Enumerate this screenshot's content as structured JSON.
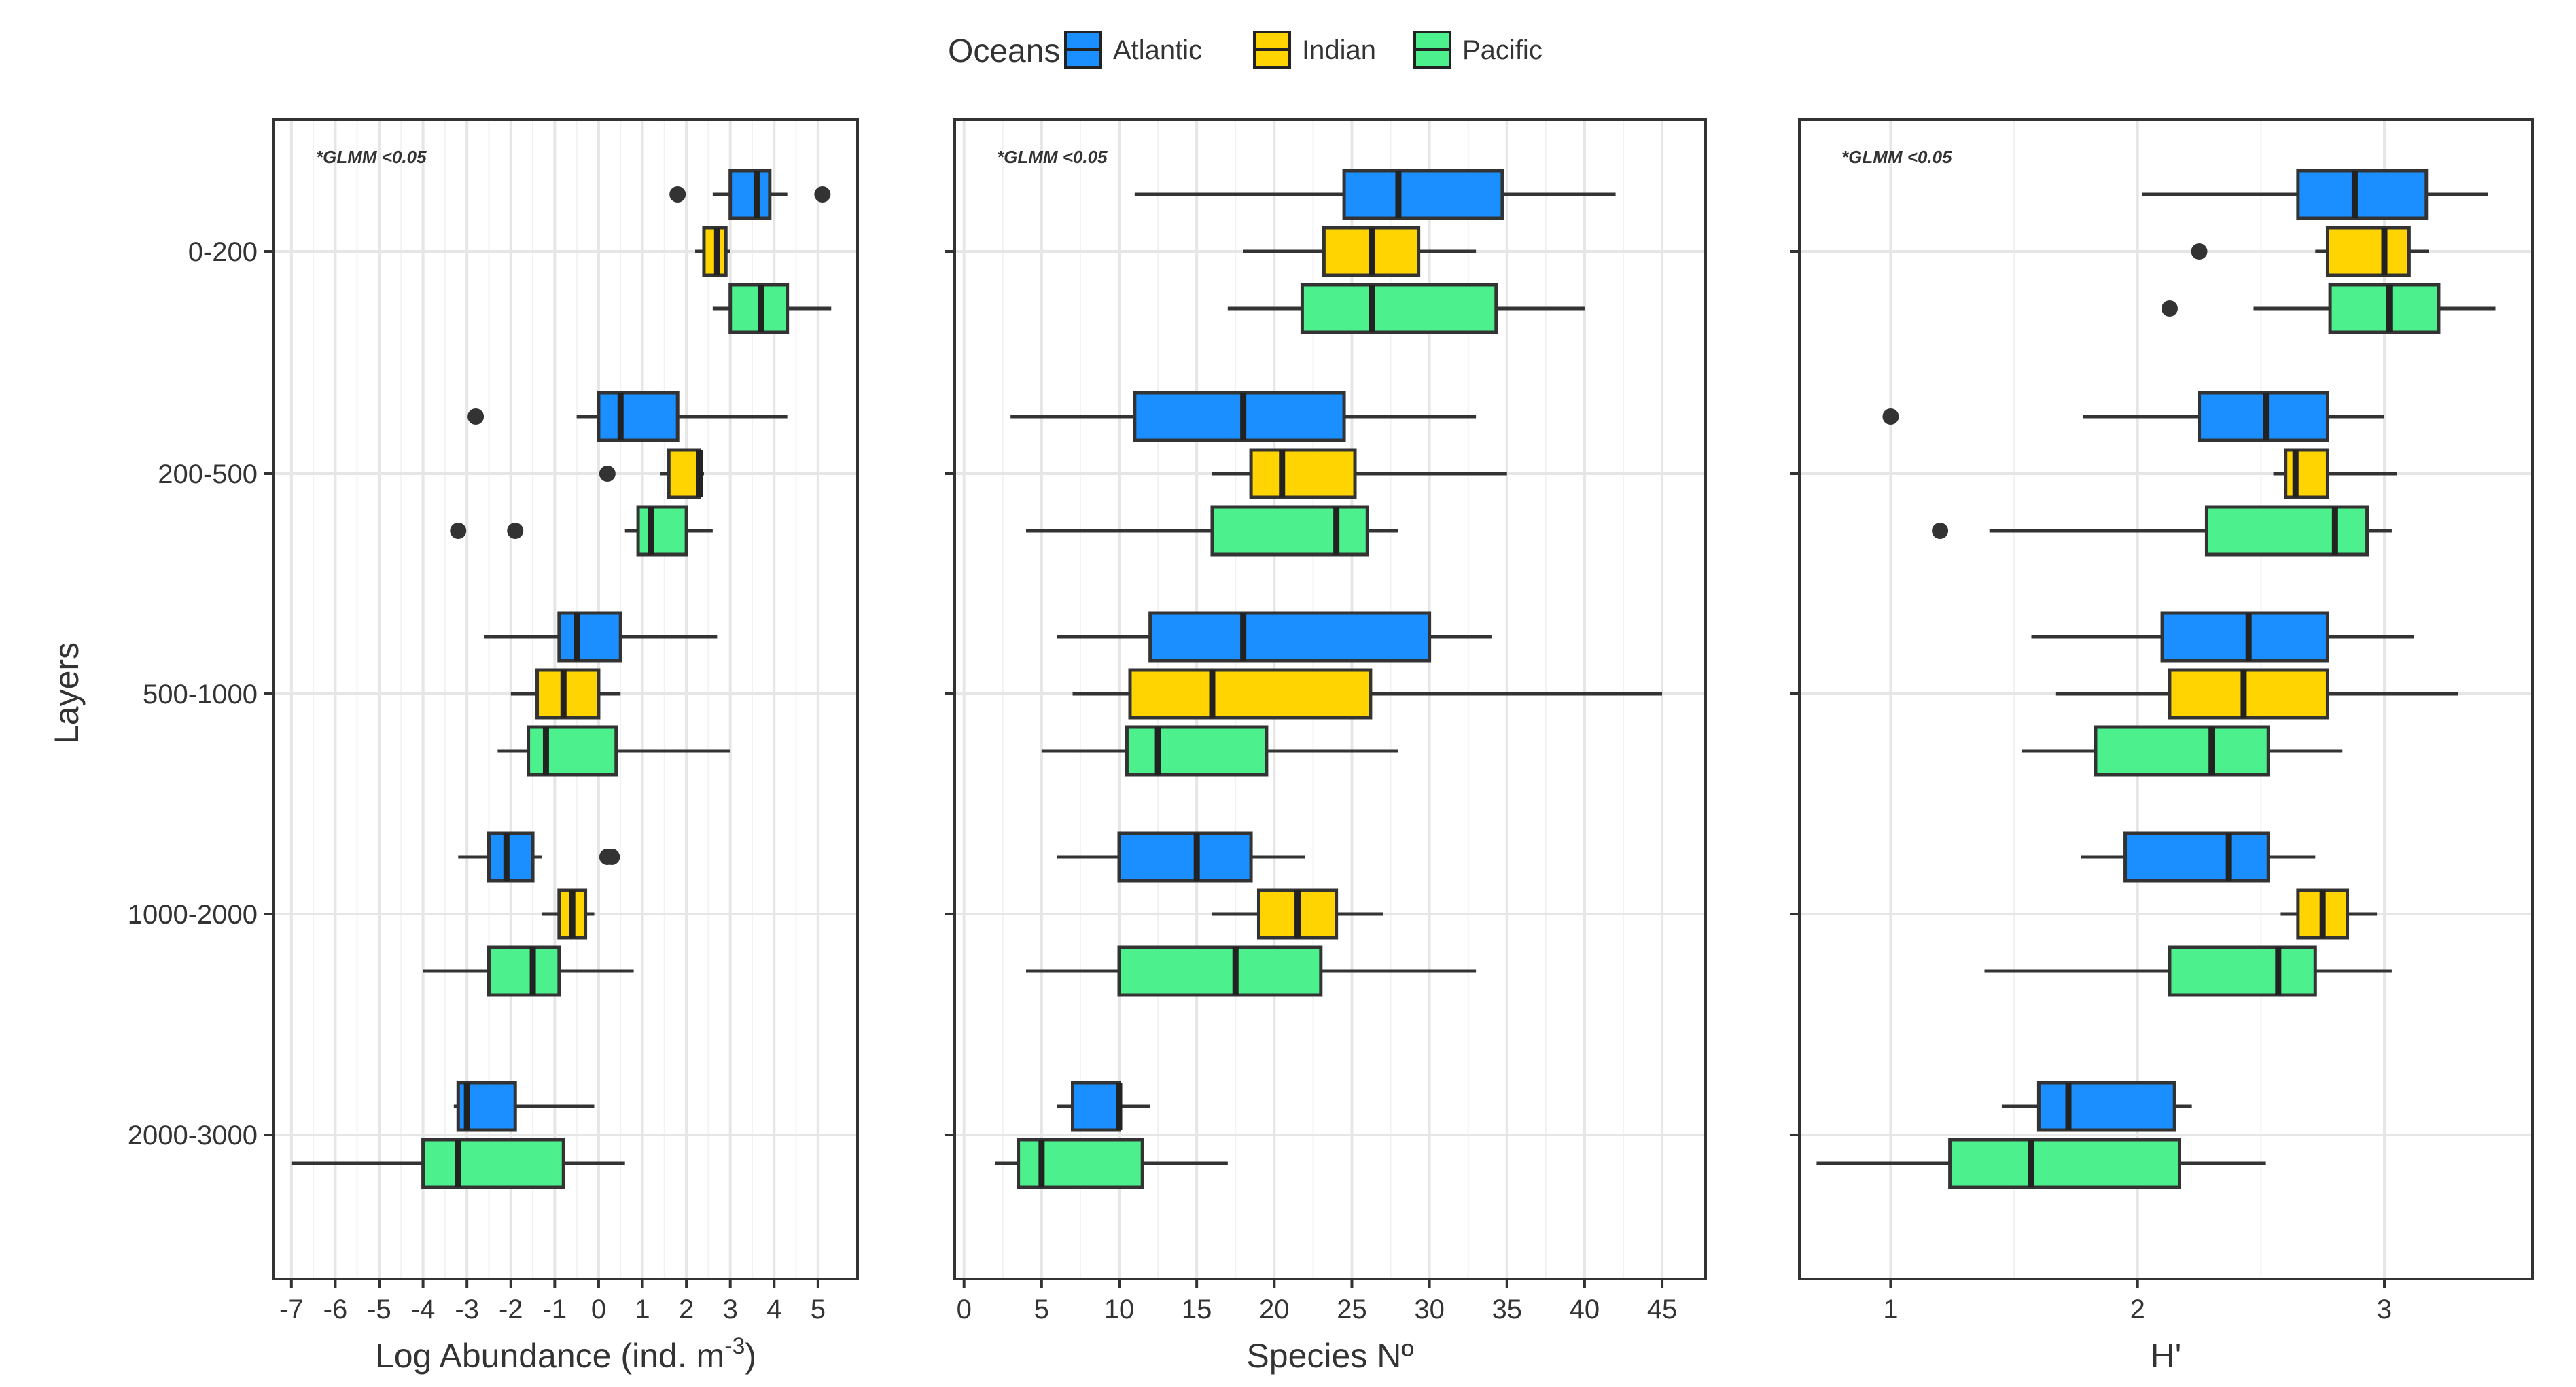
{
  "legend": {
    "title": "Oceans",
    "items": [
      {
        "name": "Atlantic",
        "color": "#1B8FFF"
      },
      {
        "name": "Indian",
        "color": "#FFD400"
      },
      {
        "name": "Pacific",
        "color": "#4CF08C"
      }
    ]
  },
  "shared": {
    "ylabel": "Layers",
    "layers": [
      "0-200",
      "200-500",
      "500-1000",
      "1000-2000",
      "2000-3000"
    ]
  },
  "chart_data": [
    {
      "type": "boxplot",
      "title": "",
      "annotation": "*GLMM <0.05",
      "xlabel": "Log Abundance (ind. m",
      "xlabel_sup": "-3",
      "xlabel_end": ")",
      "xlim": [
        -7.4,
        5.9
      ],
      "xticks": [
        -7,
        -6,
        -5,
        -4,
        -3,
        -2,
        -1,
        0,
        1,
        2,
        3,
        4,
        5
      ],
      "xtick_labels": [
        "-7",
        "-6",
        "-5",
        "-4",
        "-3",
        "-2",
        "-1",
        "0",
        "1",
        "2",
        "3",
        "4",
        "5"
      ],
      "series": [
        {
          "layer": "0-200",
          "ocean": "Atlantic",
          "min": 2.6,
          "q1": 3.0,
          "median": 3.6,
          "q3": 3.9,
          "max": 4.3,
          "outliers": [
            1.8,
            5.1
          ]
        },
        {
          "layer": "0-200",
          "ocean": "Indian",
          "min": 2.2,
          "q1": 2.4,
          "median": 2.7,
          "q3": 2.9,
          "max": 3.0,
          "outliers": []
        },
        {
          "layer": "0-200",
          "ocean": "Pacific",
          "min": 2.6,
          "q1": 3.0,
          "median": 3.7,
          "q3": 4.3,
          "max": 5.3,
          "outliers": []
        },
        {
          "layer": "200-500",
          "ocean": "Atlantic",
          "min": -0.5,
          "q1": 0.0,
          "median": 0.5,
          "q3": 1.8,
          "max": 4.3,
          "outliers": [
            -2.8
          ]
        },
        {
          "layer": "200-500",
          "ocean": "Indian",
          "min": 1.4,
          "q1": 1.6,
          "median": 2.3,
          "q3": 2.3,
          "max": 2.4,
          "outliers": [
            0.2
          ]
        },
        {
          "layer": "200-500",
          "ocean": "Pacific",
          "min": 0.6,
          "q1": 0.9,
          "median": 1.2,
          "q3": 2.0,
          "max": 2.6,
          "outliers": [
            -3.2,
            -1.9
          ]
        },
        {
          "layer": "500-1000",
          "ocean": "Atlantic",
          "min": -2.6,
          "q1": -0.9,
          "median": -0.5,
          "q3": 0.5,
          "max": 2.7,
          "outliers": []
        },
        {
          "layer": "500-1000",
          "ocean": "Indian",
          "min": -2.0,
          "q1": -1.4,
          "median": -0.8,
          "q3": 0.0,
          "max": 0.5,
          "outliers": []
        },
        {
          "layer": "500-1000",
          "ocean": "Pacific",
          "min": -2.3,
          "q1": -1.6,
          "median": -1.2,
          "q3": 0.4,
          "max": 3.0,
          "outliers": []
        },
        {
          "layer": "1000-2000",
          "ocean": "Atlantic",
          "min": -3.2,
          "q1": -2.5,
          "median": -2.1,
          "q3": -1.5,
          "max": -1.3,
          "outliers": [
            0.2,
            0.3
          ]
        },
        {
          "layer": "1000-2000",
          "ocean": "Indian",
          "min": -1.3,
          "q1": -0.9,
          "median": -0.6,
          "q3": -0.3,
          "max": -0.1,
          "outliers": []
        },
        {
          "layer": "1000-2000",
          "ocean": "Pacific",
          "min": -4.0,
          "q1": -2.5,
          "median": -1.5,
          "q3": -0.9,
          "max": 0.8,
          "outliers": []
        },
        {
          "layer": "2000-3000",
          "ocean": "Atlantic",
          "min": -3.3,
          "q1": -3.2,
          "median": -3.0,
          "q3": -1.9,
          "max": -0.1,
          "outliers": []
        },
        {
          "layer": "2000-3000",
          "ocean": "Pacific",
          "min": -7.0,
          "q1": -4.0,
          "median": -3.2,
          "q3": -0.8,
          "max": 0.6,
          "outliers": []
        }
      ]
    },
    {
      "type": "boxplot",
      "title": "",
      "annotation": "*GLMM <0.05",
      "xlabel": "Species Nº",
      "xlim": [
        -0.6,
        47.8
      ],
      "xticks": [
        0,
        5,
        10,
        15,
        20,
        25,
        30,
        35,
        40,
        45
      ],
      "xtick_labels": [
        "0",
        "5",
        "10",
        "15",
        "20",
        "25",
        "30",
        "35",
        "40",
        "45"
      ],
      "series": [
        {
          "layer": "0-200",
          "ocean": "Atlantic",
          "min": 11,
          "q1": 24.5,
          "median": 28,
          "q3": 34.7,
          "max": 42,
          "outliers": []
        },
        {
          "layer": "0-200",
          "ocean": "Indian",
          "min": 18,
          "q1": 23.2,
          "median": 26.3,
          "q3": 29.3,
          "max": 33,
          "outliers": []
        },
        {
          "layer": "0-200",
          "ocean": "Pacific",
          "min": 17,
          "q1": 21.8,
          "median": 26.3,
          "q3": 34.3,
          "max": 40,
          "outliers": []
        },
        {
          "layer": "200-500",
          "ocean": "Atlantic",
          "min": 3,
          "q1": 11,
          "median": 18,
          "q3": 24.5,
          "max": 33,
          "outliers": []
        },
        {
          "layer": "200-500",
          "ocean": "Indian",
          "min": 16,
          "q1": 18.5,
          "median": 20.5,
          "q3": 25.2,
          "max": 35,
          "outliers": []
        },
        {
          "layer": "200-500",
          "ocean": "Pacific",
          "min": 4,
          "q1": 16,
          "median": 24,
          "q3": 26,
          "max": 28,
          "outliers": []
        },
        {
          "layer": "500-1000",
          "ocean": "Atlantic",
          "min": 6,
          "q1": 12,
          "median": 18,
          "q3": 30,
          "max": 34,
          "outliers": []
        },
        {
          "layer": "500-1000",
          "ocean": "Indian",
          "min": 7,
          "q1": 10.7,
          "median": 16,
          "q3": 26.2,
          "max": 45,
          "outliers": []
        },
        {
          "layer": "500-1000",
          "ocean": "Pacific",
          "min": 5,
          "q1": 10.5,
          "median": 12.5,
          "q3": 19.5,
          "max": 28,
          "outliers": []
        },
        {
          "layer": "1000-2000",
          "ocean": "Atlantic",
          "min": 6,
          "q1": 10,
          "median": 15,
          "q3": 18.5,
          "max": 22,
          "outliers": []
        },
        {
          "layer": "1000-2000",
          "ocean": "Indian",
          "min": 16,
          "q1": 19,
          "median": 21.5,
          "q3": 24,
          "max": 27,
          "outliers": []
        },
        {
          "layer": "1000-2000",
          "ocean": "Pacific",
          "min": 4,
          "q1": 10,
          "median": 17.5,
          "q3": 23,
          "max": 33,
          "outliers": []
        },
        {
          "layer": "2000-3000",
          "ocean": "Atlantic",
          "min": 6,
          "q1": 7,
          "median": 10,
          "q3": 10,
          "max": 12,
          "outliers": []
        },
        {
          "layer": "2000-3000",
          "ocean": "Pacific",
          "min": 2,
          "q1": 3.5,
          "median": 5,
          "q3": 11.5,
          "max": 17,
          "outliers": []
        }
      ]
    },
    {
      "type": "boxplot",
      "title": "",
      "annotation": "*GLMM <0.05",
      "xlabel": "H'",
      "xlim": [
        0.63,
        3.6
      ],
      "xticks": [
        1,
        2,
        3
      ],
      "xtick_labels": [
        "1",
        "2",
        "3"
      ],
      "series": [
        {
          "layer": "0-200",
          "ocean": "Atlantic",
          "min": 2.02,
          "q1": 2.65,
          "median": 2.88,
          "q3": 3.17,
          "max": 3.42,
          "outliers": []
        },
        {
          "layer": "0-200",
          "ocean": "Indian",
          "min": 2.72,
          "q1": 2.77,
          "median": 3.0,
          "q3": 3.1,
          "max": 3.18,
          "outliers": [
            2.25
          ]
        },
        {
          "layer": "0-200",
          "ocean": "Pacific",
          "min": 2.47,
          "q1": 2.78,
          "median": 3.02,
          "q3": 3.22,
          "max": 3.45,
          "outliers": [
            2.13
          ]
        },
        {
          "layer": "200-500",
          "ocean": "Atlantic",
          "min": 1.78,
          "q1": 2.25,
          "median": 2.52,
          "q3": 2.77,
          "max": 3.0,
          "outliers": [
            1.0
          ]
        },
        {
          "layer": "200-500",
          "ocean": "Indian",
          "min": 2.55,
          "q1": 2.6,
          "median": 2.64,
          "q3": 2.77,
          "max": 3.05,
          "outliers": []
        },
        {
          "layer": "200-500",
          "ocean": "Pacific",
          "min": 1.4,
          "q1": 2.28,
          "median": 2.8,
          "q3": 2.93,
          "max": 3.03,
          "outliers": [
            1.2
          ]
        },
        {
          "layer": "500-1000",
          "ocean": "Atlantic",
          "min": 1.57,
          "q1": 2.1,
          "median": 2.45,
          "q3": 2.77,
          "max": 3.12,
          "outliers": []
        },
        {
          "layer": "500-1000",
          "ocean": "Indian",
          "min": 1.67,
          "q1": 2.13,
          "median": 2.43,
          "q3": 2.77,
          "max": 3.3,
          "outliers": []
        },
        {
          "layer": "500-1000",
          "ocean": "Pacific",
          "min": 1.53,
          "q1": 1.83,
          "median": 2.3,
          "q3": 2.53,
          "max": 2.83,
          "outliers": []
        },
        {
          "layer": "1000-2000",
          "ocean": "Atlantic",
          "min": 1.77,
          "q1": 1.95,
          "median": 2.37,
          "q3": 2.53,
          "max": 2.72,
          "outliers": []
        },
        {
          "layer": "1000-2000",
          "ocean": "Indian",
          "min": 2.58,
          "q1": 2.65,
          "median": 2.75,
          "q3": 2.85,
          "max": 2.97,
          "outliers": []
        },
        {
          "layer": "1000-2000",
          "ocean": "Pacific",
          "min": 1.38,
          "q1": 2.13,
          "median": 2.57,
          "q3": 2.72,
          "max": 3.03,
          "outliers": []
        },
        {
          "layer": "2000-3000",
          "ocean": "Atlantic",
          "min": 1.45,
          "q1": 1.6,
          "median": 1.72,
          "q3": 2.15,
          "max": 2.22,
          "outliers": []
        },
        {
          "layer": "2000-3000",
          "ocean": "Pacific",
          "min": 0.7,
          "q1": 1.24,
          "median": 1.57,
          "q3": 2.17,
          "max": 2.52,
          "outliers": []
        }
      ]
    }
  ]
}
